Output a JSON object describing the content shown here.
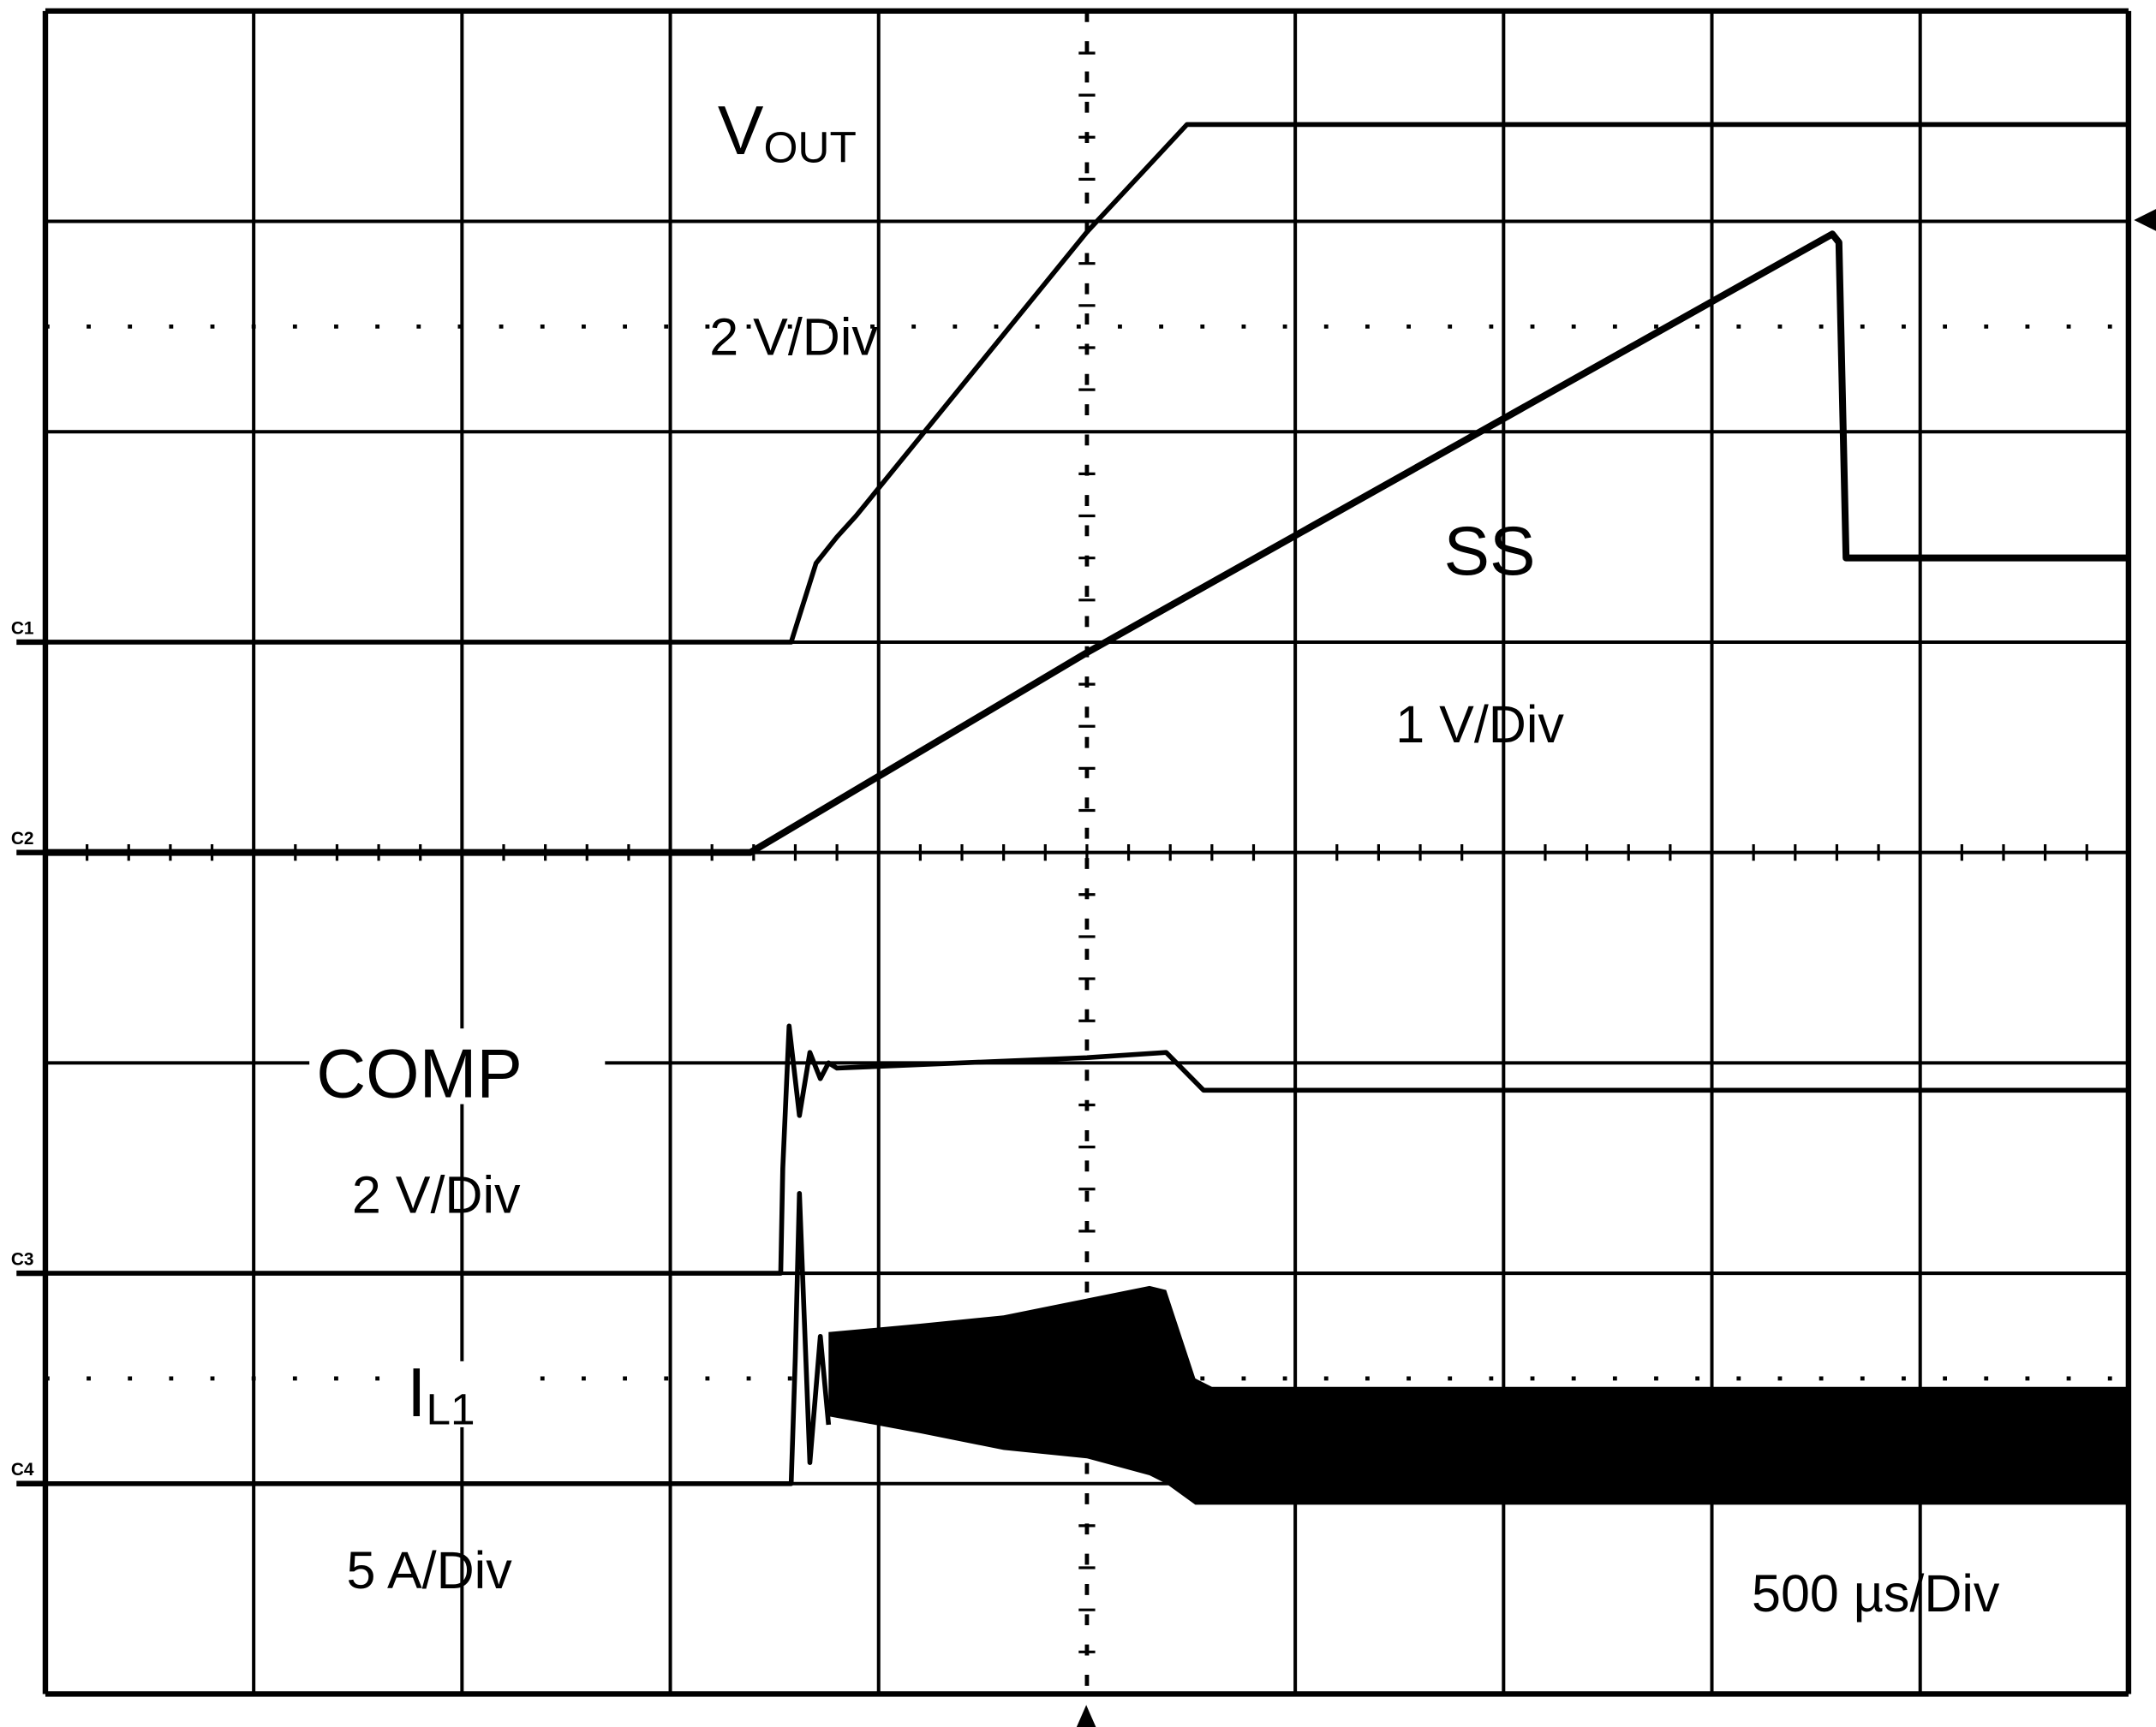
{
  "chart_data": {
    "type": "line",
    "title": "",
    "timebase_label": "500 µs/Div",
    "x_unit": "µs",
    "xlim": [
      -2500,
      2500
    ],
    "x_divisions": 10,
    "y_divisions": 8,
    "grid": true,
    "colors": {
      "background": "#ffffff",
      "trace": "#000000",
      "grid": "#000000"
    },
    "series": [
      {
        "name_main": "V",
        "name_sub": "OUT",
        "scale_label": "2 V/Div",
        "marker": "C1",
        "units_per_div": 2,
        "position_div": 1,
        "t": [
          -2500,
          -710,
          -690,
          -650,
          -600,
          -554,
          0,
          240,
          2500
        ],
        "values": [
          0,
          0,
          0.25,
          0.75,
          1.0,
          1.2,
          3.9,
          4.92,
          4.92
        ]
      },
      {
        "name": "SS",
        "scale_label": "1 V/Div",
        "marker": "C2",
        "units_per_div": 1,
        "position_div": 0,
        "t": [
          -2500,
          -808,
          0,
          1789,
          1805,
          1822,
          2500
        ],
        "values": [
          0,
          0,
          0.95,
          2.94,
          2.9,
          1.4,
          1.4
        ]
      },
      {
        "name": "COMP",
        "scale_label": "2 V/Div",
        "marker": "C3",
        "units_per_div": 2,
        "position_div": -2,
        "t": [
          -2500,
          -735,
          -730,
          -715,
          -690,
          -665,
          -640,
          -620,
          -600,
          0,
          190,
          280,
          2500
        ],
        "values": [
          0,
          0,
          1.0,
          2.35,
          1.5,
          2.1,
          1.85,
          2.0,
          1.95,
          2.05,
          2.1,
          1.74,
          1.74
        ]
      },
      {
        "name_main": "I",
        "name_sub": "L1",
        "scale_label": "5 A/Div",
        "marker": "C4",
        "units_per_div": 5,
        "position_div": -3,
        "t": [
          -2500,
          -710,
          -700,
          -690,
          -665,
          -640,
          -620
        ],
        "values": [
          0,
          0,
          3.0,
          6.9,
          0.5,
          3.5,
          1.4
        ],
        "ripple_envelope": {
          "t": [
            -620,
            -400,
            -200,
            0,
            150,
            190,
            260,
            300,
            2500
          ],
          "upper": [
            3.6,
            3.8,
            4.0,
            4.4,
            4.7,
            4.6,
            2.5,
            2.3,
            2.3
          ],
          "lower": [
            1.6,
            1.2,
            0.8,
            0.6,
            0.2,
            0.0,
            -0.5,
            -0.5,
            -0.5
          ]
        }
      }
    ]
  }
}
